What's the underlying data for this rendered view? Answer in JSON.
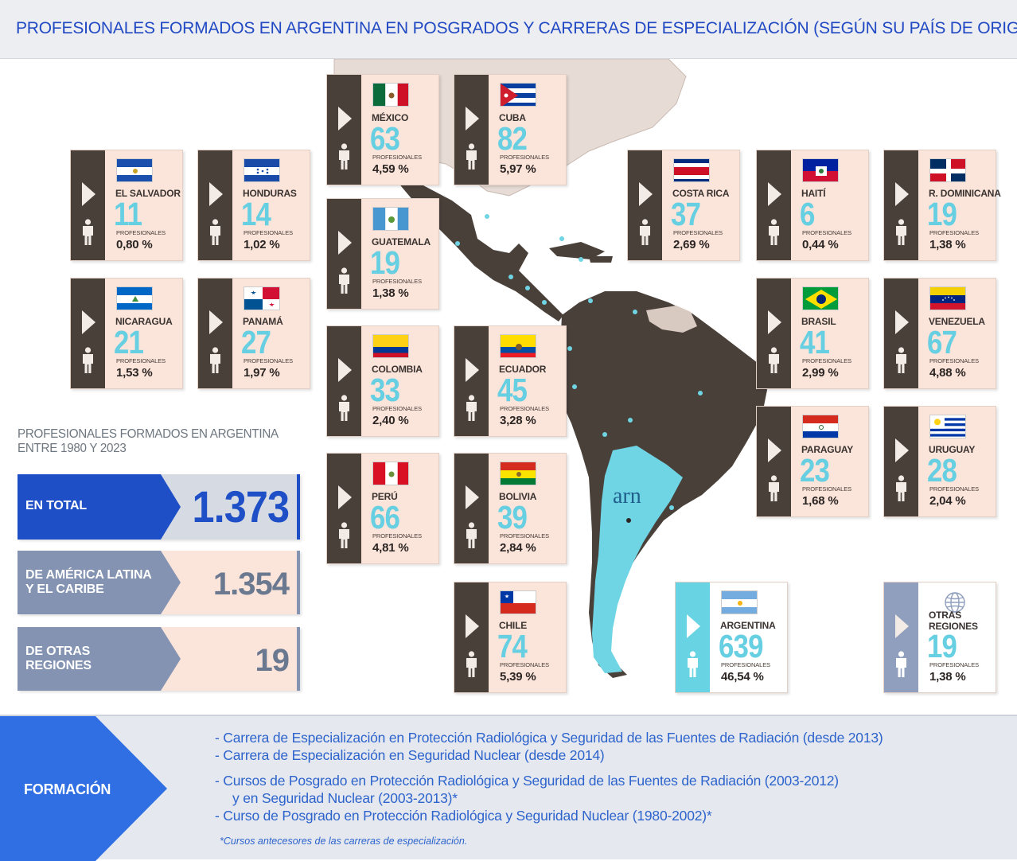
{
  "title": "PROFESIONALES FORMADOS EN ARGENTINA EN POSGRADOS Y CARRERAS DE ESPECIALIZACIÓN (SEGÚN SU PAÍS DE ORIGEN)",
  "profesionales_label": "PROFESIONALES",
  "map_logo": "arn",
  "countries": [
    {
      "id": "mexico",
      "name": "MÉXICO",
      "value": "63",
      "pct": "4,59 %",
      "flag": "mexico"
    },
    {
      "id": "cuba",
      "name": "CUBA",
      "value": "82",
      "pct": "5,97 %",
      "flag": "cuba"
    },
    {
      "id": "el-salvador",
      "name": "EL SALVADOR",
      "value": "11",
      "pct": "0,80 %",
      "flag": "el-salvador"
    },
    {
      "id": "honduras",
      "name": "HONDURAS",
      "value": "14",
      "pct": "1,02 %",
      "flag": "honduras"
    },
    {
      "id": "guatemala",
      "name": "GUATEMALA",
      "value": "19",
      "pct": "1,38 %",
      "flag": "guatemala"
    },
    {
      "id": "costa-rica",
      "name": "COSTA RICA",
      "value": "37",
      "pct": "2,69 %",
      "flag": "costa-rica"
    },
    {
      "id": "haiti",
      "name": "HAITÍ",
      "value": "6",
      "pct": "0,44 %",
      "flag": "haiti"
    },
    {
      "id": "r-dominicana",
      "name": "R. DOMINICANA",
      "value": "19",
      "pct": "1,38 %",
      "flag": "dominican-republic"
    },
    {
      "id": "nicaragua",
      "name": "NICARAGUA",
      "value": "21",
      "pct": "1,53 %",
      "flag": "nicaragua"
    },
    {
      "id": "panama",
      "name": "PANAMÁ",
      "value": "27",
      "pct": "1,97 %",
      "flag": "panama"
    },
    {
      "id": "colombia",
      "name": "COLOMBIA",
      "value": "33",
      "pct": "2,40 %",
      "flag": "colombia"
    },
    {
      "id": "ecuador",
      "name": "ECUADOR",
      "value": "45",
      "pct": "3,28 %",
      "flag": "ecuador"
    },
    {
      "id": "brasil",
      "name": "BRASIL",
      "value": "41",
      "pct": "2,99 %",
      "flag": "brazil"
    },
    {
      "id": "venezuela",
      "name": "VENEZUELA",
      "value": "67",
      "pct": "4,88 %",
      "flag": "venezuela"
    },
    {
      "id": "paraguay",
      "name": "PARAGUAY",
      "value": "23",
      "pct": "1,68 %",
      "flag": "paraguay"
    },
    {
      "id": "uruguay",
      "name": "URUGUAY",
      "value": "28",
      "pct": "2,04 %",
      "flag": "uruguay"
    },
    {
      "id": "peru",
      "name": "PERÚ",
      "value": "66",
      "pct": "4,81 %",
      "flag": "peru"
    },
    {
      "id": "bolivia",
      "name": "BOLIVIA",
      "value": "39",
      "pct": "2,84 %",
      "flag": "bolivia"
    },
    {
      "id": "chile",
      "name": "CHILE",
      "value": "74",
      "pct": "5,39 %",
      "flag": "chile"
    },
    {
      "id": "argentina",
      "name": "ARGENTINA",
      "value": "639",
      "pct": "46,54 %",
      "flag": "argentina"
    },
    {
      "id": "otras",
      "name": "OTRAS REGIONES",
      "value": "19",
      "pct": "1,38 %",
      "flag": "globe-icon"
    }
  ],
  "summary": {
    "subtitle_line1": "PROFESIONALES FORMADOS EN ARGENTINA",
    "subtitle_line2": "ENTRE 1980 Y 2023",
    "total_label": "EN TOTAL",
    "total_value": "1.373",
    "latam_label_line1": "DE AMÉRICA LATINA",
    "latam_label_line2": "Y EL CARIBE",
    "latam_value": "1.354",
    "otras_label_line1": "DE OTRAS",
    "otras_label_line2": "REGIONES",
    "otras_value": "19"
  },
  "formacion": {
    "label": "FORMACIÓN",
    "items": [
      "- Carrera de Especialización en Protección Radiológica y Seguridad de las Fuentes de Radiación (desde 2013)",
      "- Carrera de Especialización en Seguridad Nuclear (desde 2014)",
      "- Cursos de Posgrado en Protección Radiológica y Seguridad de las Fuentes de Radiación (2003-2012)",
      "y en Seguridad Nuclear (2003-2013)*",
      "- Curso de Posgrado en Protección Radiológica y Seguridad Nuclear (1980-2002)*"
    ],
    "note": "*Cursos antecesores de las carreras de especialización."
  },
  "colors": {
    "title": "#2249c4",
    "card_bg": "#fbe4da",
    "card_strip": "#4a403a",
    "number": "#66cfe2",
    "argentina": "#67d3e3",
    "total_blue": "#1e4fc6",
    "slate": "#8393b1",
    "map_dark": "#4a403a",
    "map_light": "#e3d7d1"
  }
}
